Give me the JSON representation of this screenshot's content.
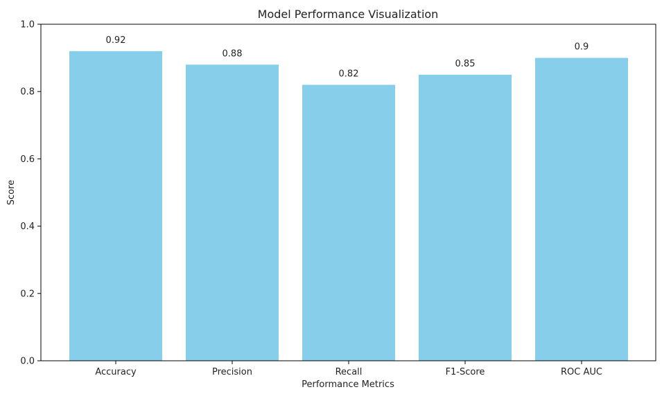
{
  "chart_data": {
    "type": "bar",
    "title": "Model Performance Visualization",
    "xlabel": "Performance Metrics",
    "ylabel": "Score",
    "categories": [
      "Accuracy",
      "Precision",
      "Recall",
      "F1-Score",
      "ROC AUC"
    ],
    "values": [
      0.92,
      0.88,
      0.82,
      0.85,
      0.9
    ],
    "data_labels": [
      "0.92",
      "0.88",
      "0.82",
      "0.85",
      "0.9"
    ],
    "ylim": [
      0,
      1.0
    ],
    "yticks": [
      0.0,
      0.2,
      0.4,
      0.6,
      0.8,
      1.0
    ],
    "ytick_labels": [
      "0.0",
      "0.2",
      "0.4",
      "0.6",
      "0.8",
      "1.0"
    ],
    "grid": false,
    "legend": "none",
    "colors": {
      "bar": "#87ceeb",
      "axis": "#000000",
      "text": "#222222"
    }
  }
}
